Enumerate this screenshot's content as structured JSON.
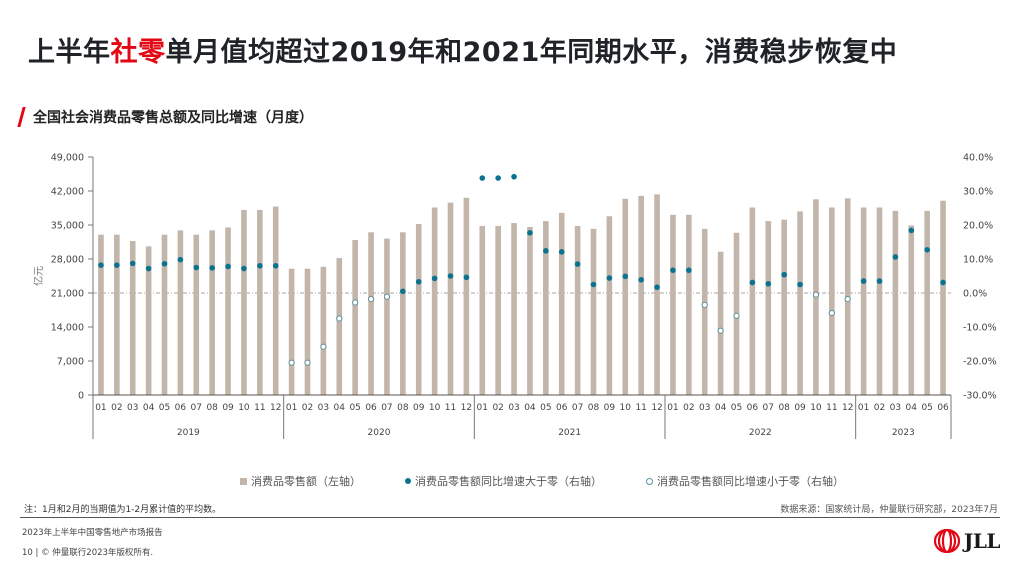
{
  "header": {
    "title_pre": "上半年",
    "title_highlight": "社零",
    "title_post": "单月值均超过2019年和2021年同期水平，消费稳步恢复中",
    "subtitle": "全国社会消费品零售总额及同比增速（月度）"
  },
  "colors": {
    "accent": "#e30613",
    "bar": "#c2b5a9",
    "dot": "#0b7390",
    "ring": "#5f8f9c"
  },
  "chart_data": {
    "type": "bar+scatter",
    "title": "全国社会消费品零售总额及同比增速（月度）",
    "ylabel": "亿元",
    "ylim": [
      0,
      49000
    ],
    "yticks": [
      "0",
      "7,000",
      "14,000",
      "21,000",
      "28,000",
      "35,000",
      "42,000",
      "49,000"
    ],
    "y2lim": [
      -30,
      40
    ],
    "y2ticks": [
      "-30.0%",
      "-20.0%",
      "-10.0%",
      "0.0%",
      "10.0%",
      "20.0%",
      "30.0%",
      "40.0%"
    ],
    "years": [
      {
        "label": "2019",
        "months": [
          "01",
          "02",
          "03",
          "04",
          "05",
          "06",
          "07",
          "08",
          "09",
          "10",
          "11",
          "12"
        ]
      },
      {
        "label": "2020",
        "months": [
          "01",
          "02",
          "03",
          "04",
          "05",
          "06",
          "07",
          "08",
          "09",
          "10",
          "11",
          "12"
        ]
      },
      {
        "label": "2021",
        "months": [
          "01",
          "02",
          "03",
          "04",
          "05",
          "06",
          "07",
          "08",
          "09",
          "10",
          "11",
          "12"
        ]
      },
      {
        "label": "2022",
        "months": [
          "01",
          "02",
          "03",
          "04",
          "05",
          "06",
          "07",
          "08",
          "09",
          "10",
          "11",
          "12"
        ]
      },
      {
        "label": "2023",
        "months": [
          "01",
          "02",
          "03",
          "04",
          "05",
          "06"
        ]
      }
    ],
    "series": [
      {
        "name": "消费品零售额（左轴）",
        "axis": "left",
        "kind": "bar",
        "values": [
          33000,
          33000,
          31700,
          30600,
          33000,
          33900,
          33000,
          33900,
          34500,
          38100,
          38100,
          38800,
          26000,
          26000,
          26400,
          28200,
          31900,
          33500,
          32200,
          33500,
          35200,
          38600,
          39600,
          40600,
          34800,
          34800,
          35400,
          34600,
          35800,
          37500,
          34800,
          34200,
          36800,
          40400,
          41000,
          41300,
          37100,
          37100,
          34200,
          29500,
          33400,
          38600,
          35800,
          36100,
          37800,
          40300,
          38600,
          40500,
          38600,
          38600,
          37900,
          34900,
          37900,
          40000
        ]
      },
      {
        "name": "消费品零售额同比增速（右轴）",
        "axis": "right",
        "kind": "scatter",
        "unit": "%",
        "values": [
          8.2,
          8.2,
          8.7,
          7.2,
          8.6,
          9.8,
          7.5,
          7.4,
          7.8,
          7.2,
          8.0,
          8.0,
          -20.5,
          -20.5,
          -15.8,
          -7.5,
          -2.8,
          -1.8,
          -1.1,
          0.5,
          3.3,
          4.3,
          5.0,
          4.6,
          33.8,
          33.8,
          34.2,
          17.7,
          12.4,
          12.1,
          8.5,
          2.5,
          4.4,
          4.9,
          3.9,
          1.7,
          6.7,
          6.7,
          -3.5,
          -11.1,
          -6.7,
          3.1,
          2.7,
          5.4,
          2.5,
          -0.5,
          -5.9,
          -1.8,
          3.5,
          3.5,
          10.6,
          18.4,
          12.7,
          3.1
        ]
      }
    ],
    "legend": [
      {
        "label": "消费品零售额（左轴）",
        "marker": "bar"
      },
      {
        "label": "消费品零售额同比增速大于零（右轴）",
        "marker": "dot"
      },
      {
        "label": "消费品零售额同比增速小于零（右轴）",
        "marker": "ring"
      }
    ],
    "legend_position": "bottom",
    "reference_line": "0.0%"
  },
  "footer": {
    "note": "注：1月和2月的当期值为1-2月累计值的平均数。",
    "source": "数据来源：国家统计局，仲量联行研究部，2023年7月",
    "report": "2023年上半年中国零售地产市场报告",
    "copyright": "10 | © 仲量联行2023年版权所有.",
    "logo_text": "JLL"
  }
}
